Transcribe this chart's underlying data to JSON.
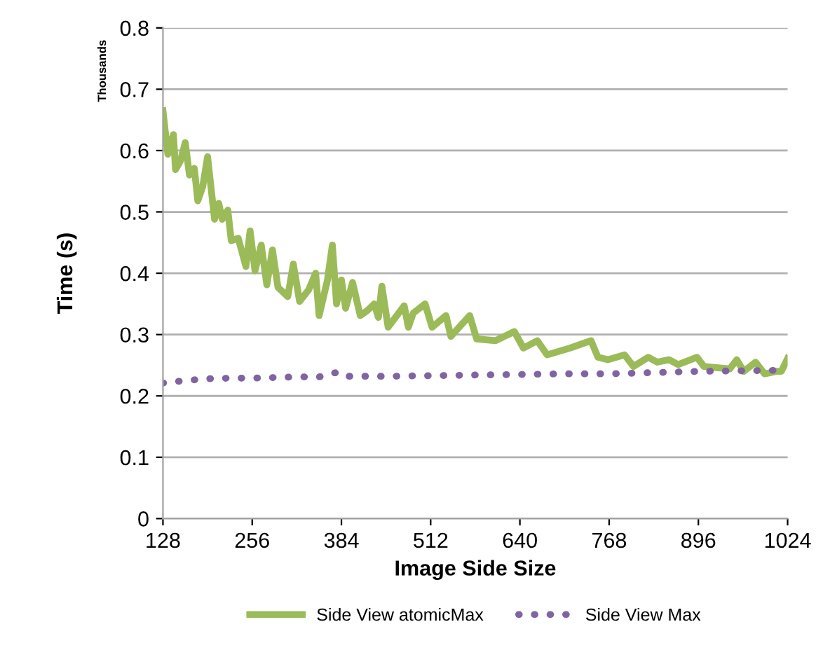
{
  "chart_data": {
    "type": "line",
    "xlabel": "Image Side Size",
    "ylabel": "Time (s)",
    "annotations": [
      "Thousands"
    ],
    "xlim": [
      128,
      1024
    ],
    "xticks": [
      128,
      256,
      384,
      512,
      640,
      768,
      896,
      1024
    ],
    "ylim": [
      0,
      0.8
    ],
    "yticks": [
      0,
      0.1,
      0.2,
      0.3,
      0.4,
      0.5,
      0.6,
      0.7,
      0.8
    ],
    "grid": "y",
    "legend": "bottom",
    "series": [
      {
        "name": "Side View atomicMax",
        "color": "#9bbb59",
        "line_style": "solid",
        "x": [
          128,
          135,
          143,
          146,
          153,
          160,
          166,
          173,
          178,
          185,
          192,
          202,
          208,
          213,
          221,
          226,
          236,
          247,
          253,
          260,
          269,
          277,
          285,
          293,
          307,
          315,
          324,
          337,
          347,
          352,
          364,
          371,
          377,
          384,
          390,
          400,
          411,
          421,
          431,
          437,
          442,
          451,
          474,
          480,
          487,
          504,
          514,
          534,
          541,
          568,
          578,
          605,
          632,
          645,
          665,
          679,
          712,
          742,
          752,
          766,
          790,
          803,
          824,
          837,
          854,
          867,
          894,
          904,
          941,
          951,
          961,
          978,
          991,
          1008,
          1015,
          1024
        ],
        "values": [
          0.665,
          0.594,
          0.626,
          0.569,
          0.583,
          0.613,
          0.56,
          0.571,
          0.518,
          0.541,
          0.59,
          0.488,
          0.514,
          0.488,
          0.503,
          0.453,
          0.457,
          0.411,
          0.469,
          0.404,
          0.446,
          0.381,
          0.438,
          0.377,
          0.362,
          0.415,
          0.354,
          0.373,
          0.4,
          0.331,
          0.389,
          0.446,
          0.35,
          0.389,
          0.343,
          0.385,
          0.331,
          0.339,
          0.35,
          0.328,
          0.379,
          0.312,
          0.347,
          0.312,
          0.335,
          0.35,
          0.312,
          0.331,
          0.297,
          0.331,
          0.293,
          0.29,
          0.305,
          0.278,
          0.29,
          0.267,
          0.278,
          0.29,
          0.263,
          0.259,
          0.267,
          0.248,
          0.263,
          0.255,
          0.259,
          0.251,
          0.263,
          0.248,
          0.244,
          0.259,
          0.24,
          0.255,
          0.236,
          0.24,
          0.24,
          0.261
        ]
      },
      {
        "name": "Side View Max",
        "color": "#8064a2",
        "line_style": "dotted",
        "x": [
          128,
          160,
          192,
          224,
          256,
          288,
          320,
          352,
          376,
          384,
          448,
          512,
          576,
          640,
          704,
          768,
          832,
          896,
          960,
          1024
        ],
        "values": [
          0.221,
          0.225,
          0.228,
          0.229,
          0.229,
          0.23,
          0.231,
          0.231,
          0.238,
          0.232,
          0.232,
          0.233,
          0.234,
          0.235,
          0.236,
          0.236,
          0.238,
          0.24,
          0.241,
          0.242
        ]
      }
    ]
  }
}
